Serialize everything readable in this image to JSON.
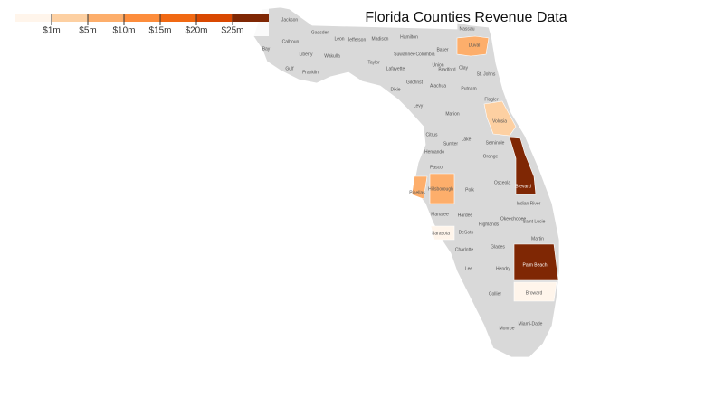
{
  "title": "Florida Counties Revenue Data",
  "legend": {
    "colors": [
      "#fff5eb",
      "#fdd0a2",
      "#fdae6b",
      "#fd8d3c",
      "#f16913",
      "#d94801",
      "#7f2704"
    ],
    "ticks": [
      {
        "value": 1,
        "label": "$1m"
      },
      {
        "value": 5,
        "label": "$5m"
      },
      {
        "value": 10,
        "label": "$10m"
      },
      {
        "value": 15,
        "label": "$15m"
      },
      {
        "value": 20,
        "label": "$20m"
      },
      {
        "value": 25,
        "label": "$25m"
      }
    ]
  },
  "no_data_color": "#d9d9d9",
  "counties": [
    {
      "name": "Jackson"
    },
    {
      "name": "Gadsden"
    },
    {
      "name": "Leon"
    },
    {
      "name": "Jefferson"
    },
    {
      "name": "Madison"
    },
    {
      "name": "Hamilton"
    },
    {
      "name": "Nassau"
    },
    {
      "name": "Baker"
    },
    {
      "name": "Duval",
      "revenue": 8
    },
    {
      "name": "Calhoun"
    },
    {
      "name": "Liberty"
    },
    {
      "name": "Wakulla"
    },
    {
      "name": "Taylor"
    },
    {
      "name": "Suwannee"
    },
    {
      "name": "Columbia"
    },
    {
      "name": "Union"
    },
    {
      "name": "Bradford"
    },
    {
      "name": "Clay"
    },
    {
      "name": "St. Johns"
    },
    {
      "name": "Bay"
    },
    {
      "name": "Gulf"
    },
    {
      "name": "Franklin"
    },
    {
      "name": "Lafayette"
    },
    {
      "name": "Gilchrist"
    },
    {
      "name": "Alachua"
    },
    {
      "name": "Putnam"
    },
    {
      "name": "Dixie"
    },
    {
      "name": "Flagler"
    },
    {
      "name": "Levy"
    },
    {
      "name": "Marion"
    },
    {
      "name": "Volusia",
      "revenue": 3
    },
    {
      "name": "Citrus"
    },
    {
      "name": "Lake"
    },
    {
      "name": "Seminole"
    },
    {
      "name": "Sumter"
    },
    {
      "name": "Hernando"
    },
    {
      "name": "Orange"
    },
    {
      "name": "Pasco"
    },
    {
      "name": "Brevard",
      "revenue": 28
    },
    {
      "name": "Osceola"
    },
    {
      "name": "Pinellas",
      "revenue": 8
    },
    {
      "name": "Hillsborough",
      "revenue": 8
    },
    {
      "name": "Polk"
    },
    {
      "name": "Indian River"
    },
    {
      "name": "Manatee"
    },
    {
      "name": "Hardee"
    },
    {
      "name": "Highlands"
    },
    {
      "name": "Okeechobee"
    },
    {
      "name": "Saint Lucie"
    },
    {
      "name": "Sarasota",
      "revenue": 0.5
    },
    {
      "name": "DeSoto"
    },
    {
      "name": "Martin"
    },
    {
      "name": "Charlotte"
    },
    {
      "name": "Glades"
    },
    {
      "name": "Palm Beach",
      "revenue": 28
    },
    {
      "name": "Lee"
    },
    {
      "name": "Hendry"
    },
    {
      "name": "Broward",
      "revenue": 0.5
    },
    {
      "name": "Collier"
    },
    {
      "name": "Miami-Dade"
    },
    {
      "name": "Monroe"
    }
  ]
}
